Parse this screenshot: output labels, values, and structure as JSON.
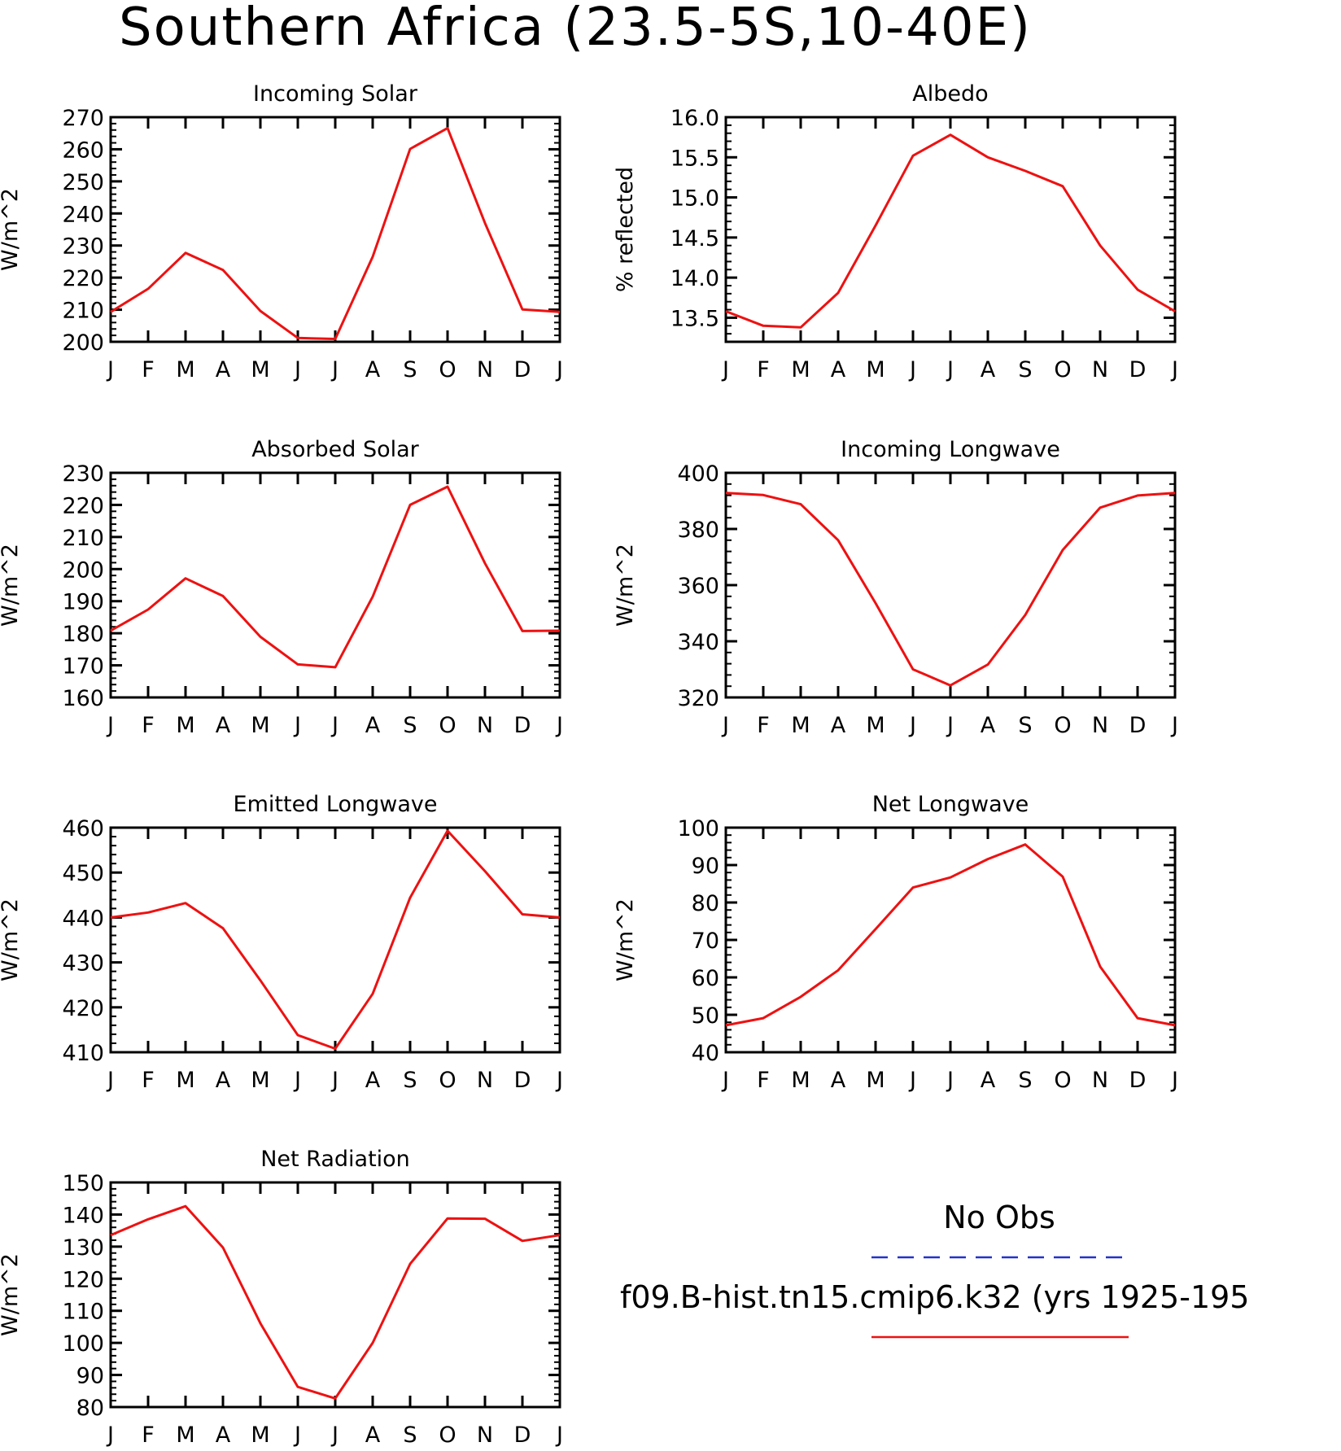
{
  "figure": {
    "title": "Southern Africa (23.5-5S,10-40E)"
  },
  "legend": {
    "obs_label": "No Obs",
    "obs_color": "#2233cc",
    "model_label": "f09.B-hist.tn15.cmip6.k32 (yrs 1925-195",
    "model_color": "#ee1111"
  },
  "chart_data": [
    {
      "type": "line",
      "title": "Incoming Solar",
      "ylabel": "W/m^2",
      "x": [
        "J",
        "F",
        "M",
        "A",
        "M",
        "J",
        "J",
        "A",
        "S",
        "O",
        "N",
        "D",
        "J"
      ],
      "ylim": [
        200,
        270
      ],
      "yticks": [
        200,
        210,
        220,
        230,
        240,
        250,
        260,
        270
      ],
      "series": [
        {
          "values": [
            209.3,
            216.5,
            227.7,
            222.4,
            209.6,
            201.2,
            200.9,
            226.5,
            260.1,
            266.6,
            237.0,
            210.1,
            209.3
          ]
        }
      ]
    },
    {
      "type": "line",
      "title": "Albedo",
      "ylabel": "% reflected",
      "x": [
        "J",
        "F",
        "M",
        "A",
        "M",
        "J",
        "J",
        "A",
        "S",
        "O",
        "N",
        "D",
        "J"
      ],
      "ylim": [
        13.2,
        16.0
      ],
      "yticks": [
        "13.5",
        "14.0",
        "14.5",
        "15.0",
        "15.5",
        "16.0"
      ],
      "series": [
        {
          "values": [
            13.58,
            13.4,
            13.38,
            13.81,
            14.65,
            15.52,
            15.78,
            15.5,
            15.33,
            15.14,
            14.4,
            13.85,
            13.58
          ]
        }
      ]
    },
    {
      "type": "line",
      "title": "Absorbed Solar",
      "ylabel": "W/m^2",
      "x": [
        "J",
        "F",
        "M",
        "A",
        "M",
        "J",
        "J",
        "A",
        "S",
        "O",
        "N",
        "D",
        "J"
      ],
      "ylim": [
        160,
        230
      ],
      "yticks": [
        160,
        170,
        180,
        190,
        200,
        210,
        220,
        230
      ],
      "series": [
        {
          "values": [
            180.8,
            187.4,
            197.1,
            191.6,
            178.9,
            170.3,
            169.4,
            191.4,
            220.0,
            225.7,
            201.8,
            180.7,
            180.8
          ]
        }
      ]
    },
    {
      "type": "line",
      "title": "Incoming Longwave",
      "ylabel": "W/m^2",
      "x": [
        "J",
        "F",
        "M",
        "A",
        "M",
        "J",
        "J",
        "A",
        "S",
        "O",
        "N",
        "D",
        "J"
      ],
      "ylim": [
        320,
        400
      ],
      "yticks": [
        320,
        340,
        360,
        380,
        400
      ],
      "series": [
        {
          "values": [
            392.8,
            392.1,
            388.8,
            376.0,
            353.6,
            330.0,
            324.3,
            331.7,
            349.4,
            372.5,
            387.6,
            391.9,
            392.8
          ]
        }
      ]
    },
    {
      "type": "line",
      "title": "Emitted Longwave",
      "ylabel": "W/m^2",
      "x": [
        "J",
        "F",
        "M",
        "A",
        "M",
        "J",
        "J",
        "A",
        "S",
        "O",
        "N",
        "D",
        "J"
      ],
      "ylim": [
        410,
        460
      ],
      "yticks": [
        410,
        420,
        430,
        440,
        450,
        460
      ],
      "series": [
        {
          "values": [
            440.0,
            441.1,
            443.2,
            437.6,
            426.0,
            413.8,
            410.8,
            423.0,
            444.4,
            459.3,
            450.3,
            440.7,
            440.0
          ]
        }
      ]
    },
    {
      "type": "line",
      "title": "Net Longwave",
      "ylabel": "W/m^2",
      "x": [
        "J",
        "F",
        "M",
        "A",
        "M",
        "J",
        "J",
        "A",
        "S",
        "O",
        "N",
        "D",
        "J"
      ],
      "ylim": [
        40,
        100
      ],
      "yticks": [
        40,
        50,
        60,
        70,
        80,
        90,
        100
      ],
      "series": [
        {
          "values": [
            47.2,
            49.1,
            54.8,
            61.9,
            72.9,
            84.0,
            86.7,
            91.6,
            95.5,
            86.9,
            62.9,
            49.1,
            47.2
          ]
        }
      ]
    },
    {
      "type": "line",
      "title": "Net Radiation",
      "ylabel": "W/m^2",
      "x": [
        "J",
        "F",
        "M",
        "A",
        "M",
        "J",
        "J",
        "A",
        "S",
        "O",
        "N",
        "D",
        "J"
      ],
      "ylim": [
        80,
        150
      ],
      "yticks": [
        80,
        90,
        100,
        110,
        120,
        130,
        140,
        150
      ],
      "series": [
        {
          "values": [
            133.6,
            138.5,
            142.6,
            129.7,
            106.1,
            86.3,
            82.7,
            100.0,
            124.6,
            138.8,
            138.7,
            131.8,
            133.6
          ]
        }
      ]
    }
  ]
}
